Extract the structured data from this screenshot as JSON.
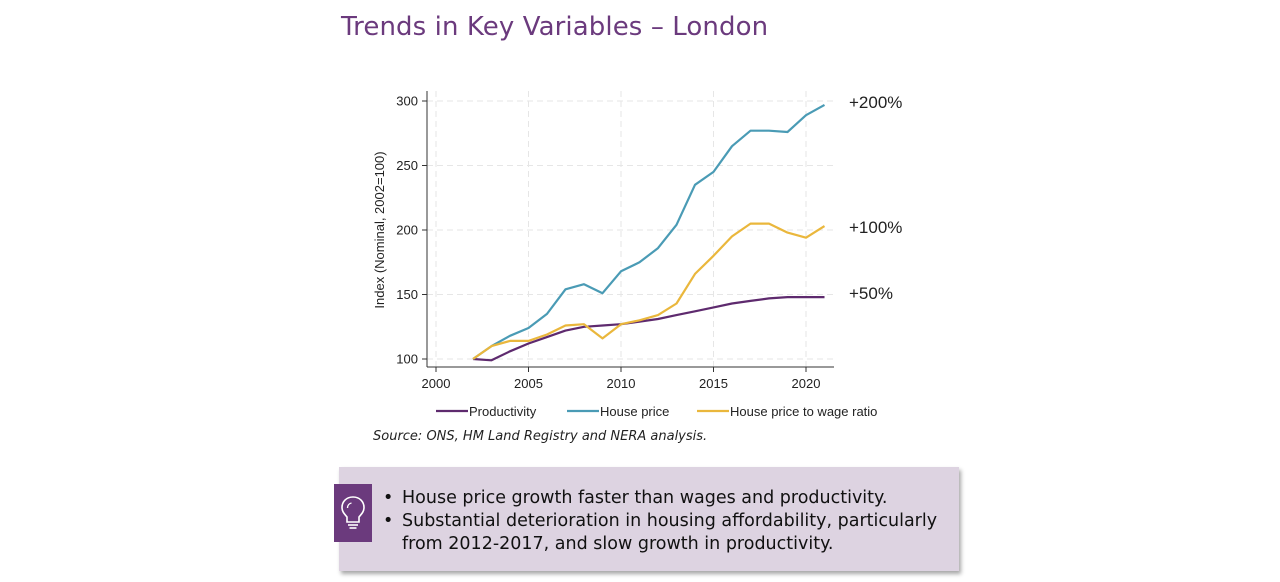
{
  "title": "Trends in Key Variables – London",
  "chart_data": {
    "type": "line",
    "title": "",
    "xlabel": "",
    "ylabel": "Index (Nominal, 2002=100)",
    "xlim": [
      2000,
      2021
    ],
    "ylim": [
      100,
      300
    ],
    "xticks": [
      2000,
      2005,
      2010,
      2015,
      2020
    ],
    "yticks": [
      100,
      150,
      200,
      250,
      300
    ],
    "grid": true,
    "legend": "bottom",
    "series": [
      {
        "name": "Productivity",
        "color": "#5e2a6e",
        "x": [
          2002,
          2003,
          2004,
          2005,
          2006,
          2007,
          2008,
          2009,
          2010,
          2011,
          2012,
          2013,
          2014,
          2015,
          2016,
          2017,
          2018,
          2019,
          2020,
          2021
        ],
        "values": [
          100,
          99,
          106,
          112,
          117,
          122,
          125,
          126,
          127,
          129,
          131,
          134,
          137,
          140,
          143,
          145,
          147,
          148,
          148,
          148
        ]
      },
      {
        "name": "House price",
        "color": "#4a9bb5",
        "x": [
          2002,
          2003,
          2004,
          2005,
          2006,
          2007,
          2008,
          2009,
          2010,
          2011,
          2012,
          2013,
          2014,
          2015,
          2016,
          2017,
          2018,
          2019,
          2020,
          2021
        ],
        "values": [
          100,
          110,
          118,
          124,
          135,
          154,
          158,
          151,
          168,
          175,
          186,
          204,
          235,
          245,
          265,
          277,
          277,
          276,
          289,
          297
        ]
      },
      {
        "name": "House price to wage ratio",
        "color": "#eab73c",
        "x": [
          2002,
          2003,
          2004,
          2005,
          2006,
          2007,
          2008,
          2009,
          2010,
          2011,
          2012,
          2013,
          2014,
          2015,
          2016,
          2017,
          2018,
          2019,
          2020,
          2021
        ],
        "values": [
          100,
          110,
          114,
          114,
          119,
          126,
          127,
          116,
          127,
          130,
          134,
          143,
          166,
          180,
          195,
          205,
          205,
          198,
          194,
          203
        ]
      }
    ],
    "annotations": [
      {
        "text": "+200%",
        "y": 300
      },
      {
        "text": "+100%",
        "y": 203
      },
      {
        "text": "+50%",
        "y": 152
      }
    ]
  },
  "source": "Source: ONS, HM Land Registry and NERA analysis.",
  "callout": {
    "icon": "lightbulb-icon",
    "bullets": [
      "House price growth faster than wages and productivity.",
      "Substantial deterioration in housing affordability, particularly from 2012-2017, and slow growth in productivity."
    ]
  }
}
